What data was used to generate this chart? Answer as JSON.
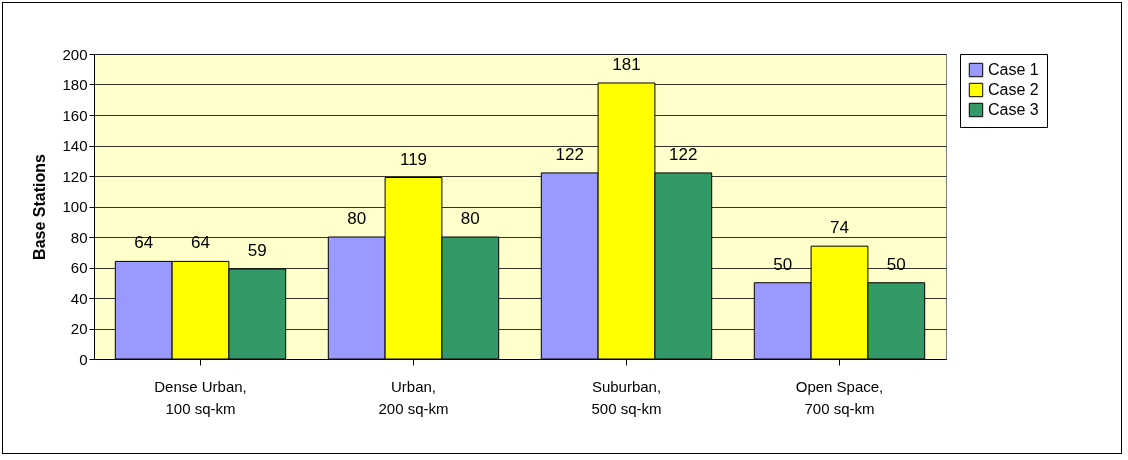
{
  "chart_data": {
    "type": "bar",
    "ylabel": "Base Stations",
    "categories": [
      "Dense Urban,\n100 sq-km",
      "Urban,\n200 sq-km",
      "Suburban,\n500 sq-km",
      "Open Space,\n700 sq-km"
    ],
    "series": [
      {
        "name": "Case 1",
        "color": "#9999ff",
        "values": [
          64,
          80,
          122,
          50
        ]
      },
      {
        "name": "Case 2",
        "color": "#ffff00",
        "values": [
          64,
          119,
          181,
          74
        ]
      },
      {
        "name": "Case 3",
        "color": "#339966",
        "values": [
          59,
          80,
          122,
          50
        ]
      }
    ],
    "ylim": [
      0,
      200
    ],
    "yticks": [
      0,
      20,
      40,
      60,
      80,
      100,
      120,
      140,
      160,
      180,
      200
    ],
    "grid": "y",
    "legend": "right",
    "data_labels": true
  }
}
